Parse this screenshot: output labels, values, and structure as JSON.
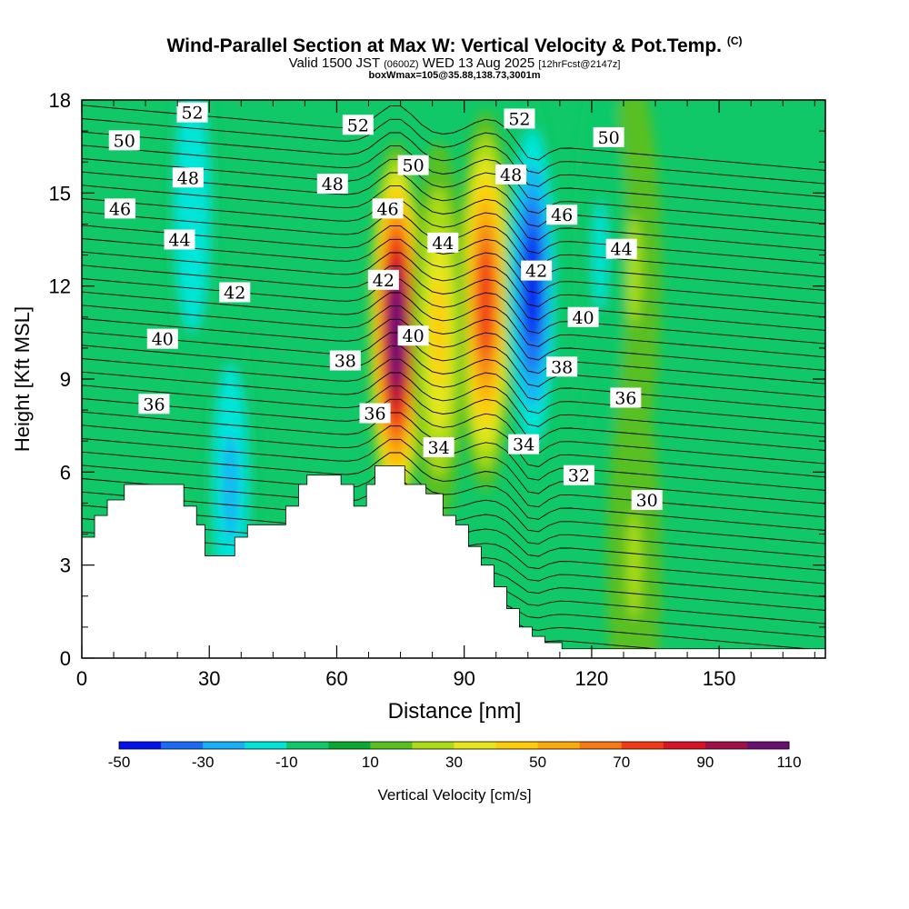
{
  "header": {
    "title": "Wind-Parallel Section at Max W: Vertical Velocity & Pot.Temp.",
    "copyright": "(C)",
    "valid_prefix": "Valid 1500 JST",
    "valid_utc": "(0600Z)",
    "valid_date": "WED 13 Aug 2025",
    "forecast": "[12hrFcst@2147z]",
    "subtitle": "boxWmax=105@35.88,138.73,3001m"
  },
  "chart_data": {
    "type": "heatmap",
    "xlabel": "Distance [nm]",
    "ylabel": "Height [Kft MSL]",
    "xlim": [
      0,
      175
    ],
    "ylim": [
      0,
      18
    ],
    "x_ticks": [
      0,
      30,
      60,
      90,
      120,
      150
    ],
    "y_ticks": [
      0,
      3,
      6,
      9,
      12,
      15,
      18
    ],
    "colorbar": {
      "label": "Vertical Velocity [cm/s]",
      "tick_labels": [
        "-50",
        "-30",
        "-10",
        "10",
        "30",
        "50",
        "70",
        "90",
        "110"
      ],
      "levels": [
        -50,
        -40,
        -30,
        -20,
        -10,
        0,
        10,
        20,
        30,
        40,
        50,
        60,
        70,
        80,
        90,
        100,
        110
      ],
      "colors": [
        "#0010ee",
        "#1a6cf5",
        "#18b0f5",
        "#00e5d8",
        "#10c868",
        "#0aa830",
        "#58c020",
        "#aadc18",
        "#e6e61a",
        "#ffcc0a",
        "#fbaa0c",
        "#f57a14",
        "#f23a14",
        "#d81424",
        "#a01048",
        "#6a1074"
      ]
    },
    "background_color": "#10c868",
    "max_w_cm_s": 105,
    "updraft_cores": [
      {
        "x_nm": 74,
        "z_kft": 10.5,
        "w_cm_s": 105
      },
      {
        "x_nm": 95,
        "z_kft": 11.5,
        "w_cm_s": 75
      },
      {
        "x_nm": 84,
        "z_kft": 10.5,
        "w_cm_s": 40
      },
      {
        "x_nm": 130,
        "z_kft": 12.5,
        "w_cm_s": 20
      },
      {
        "x_nm": 130,
        "z_kft": 3.0,
        "w_cm_s": 20
      }
    ],
    "downdraft_cores": [
      {
        "x_nm": 106,
        "z_kft": 12.0,
        "w_cm_s": -50
      },
      {
        "x_nm": 35,
        "z_kft": 5.5,
        "w_cm_s": -25
      },
      {
        "x_nm": 26,
        "z_kft": 14.5,
        "w_cm_s": -20
      },
      {
        "x_nm": 122,
        "z_kft": 13.0,
        "w_cm_s": -15
      }
    ],
    "theta_contour_labels": [
      {
        "value": "52",
        "x": 26,
        "z": 17.6
      },
      {
        "value": "50",
        "x": 10,
        "z": 16.7
      },
      {
        "value": "48",
        "x": 25,
        "z": 15.5
      },
      {
        "value": "46",
        "x": 9,
        "z": 14.5
      },
      {
        "value": "44",
        "x": 23,
        "z": 13.5
      },
      {
        "value": "42",
        "x": 36,
        "z": 11.8
      },
      {
        "value": "40",
        "x": 19,
        "z": 10.3
      },
      {
        "value": "36",
        "x": 17,
        "z": 8.2
      },
      {
        "value": "52",
        "x": 65,
        "z": 17.2
      },
      {
        "value": "48",
        "x": 59,
        "z": 15.3
      },
      {
        "value": "50",
        "x": 78,
        "z": 15.9
      },
      {
        "value": "46",
        "x": 72,
        "z": 14.5
      },
      {
        "value": "44",
        "x": 85,
        "z": 13.4
      },
      {
        "value": "42",
        "x": 71,
        "z": 12.2
      },
      {
        "value": "40",
        "x": 78,
        "z": 10.4
      },
      {
        "value": "38",
        "x": 62,
        "z": 9.6
      },
      {
        "value": "36",
        "x": 69,
        "z": 7.9
      },
      {
        "value": "34",
        "x": 84,
        "z": 6.8
      },
      {
        "value": "52",
        "x": 103,
        "z": 17.4
      },
      {
        "value": "48",
        "x": 101,
        "z": 15.6
      },
      {
        "value": "46",
        "x": 113,
        "z": 14.3
      },
      {
        "value": "42",
        "x": 107,
        "z": 12.5
      },
      {
        "value": "38",
        "x": 113,
        "z": 9.4
      },
      {
        "value": "34",
        "x": 104,
        "z": 6.9
      },
      {
        "value": "32",
        "x": 117,
        "z": 5.9
      },
      {
        "value": "30",
        "x": 133,
        "z": 5.1
      },
      {
        "value": "50",
        "x": 124,
        "z": 16.8
      },
      {
        "value": "44",
        "x": 127,
        "z": 13.2
      },
      {
        "value": "40",
        "x": 118,
        "z": 11.0
      },
      {
        "value": "36",
        "x": 128,
        "z": 8.4
      }
    ],
    "terrain_kft": [
      {
        "x": 0,
        "z": 3.9
      },
      {
        "x": 3,
        "z": 4.6
      },
      {
        "x": 6,
        "z": 5.1
      },
      {
        "x": 10,
        "z": 5.6
      },
      {
        "x": 22,
        "z": 5.6
      },
      {
        "x": 24,
        "z": 4.9
      },
      {
        "x": 27,
        "z": 4.3
      },
      {
        "x": 29,
        "z": 3.3
      },
      {
        "x": 35,
        "z": 3.3
      },
      {
        "x": 36,
        "z": 3.9
      },
      {
        "x": 39,
        "z": 4.3
      },
      {
        "x": 45,
        "z": 4.3
      },
      {
        "x": 48,
        "z": 4.9
      },
      {
        "x": 51,
        "z": 5.6
      },
      {
        "x": 53,
        "z": 5.9
      },
      {
        "x": 58,
        "z": 5.9
      },
      {
        "x": 61,
        "z": 5.6
      },
      {
        "x": 64,
        "z": 4.9
      },
      {
        "x": 67,
        "z": 5.6
      },
      {
        "x": 69,
        "z": 6.2
      },
      {
        "x": 73,
        "z": 6.2
      },
      {
        "x": 76,
        "z": 5.6
      },
      {
        "x": 81,
        "z": 5.3
      },
      {
        "x": 85,
        "z": 4.6
      },
      {
        "x": 88,
        "z": 4.3
      },
      {
        "x": 91,
        "z": 3.6
      },
      {
        "x": 94,
        "z": 3.0
      },
      {
        "x": 97,
        "z": 2.3
      },
      {
        "x": 100,
        "z": 1.6
      },
      {
        "x": 103,
        "z": 1.0
      },
      {
        "x": 106,
        "z": 0.7
      },
      {
        "x": 109,
        "z": 0.5
      },
      {
        "x": 113,
        "z": 0.3
      },
      {
        "x": 175,
        "z": 0.3
      }
    ]
  }
}
